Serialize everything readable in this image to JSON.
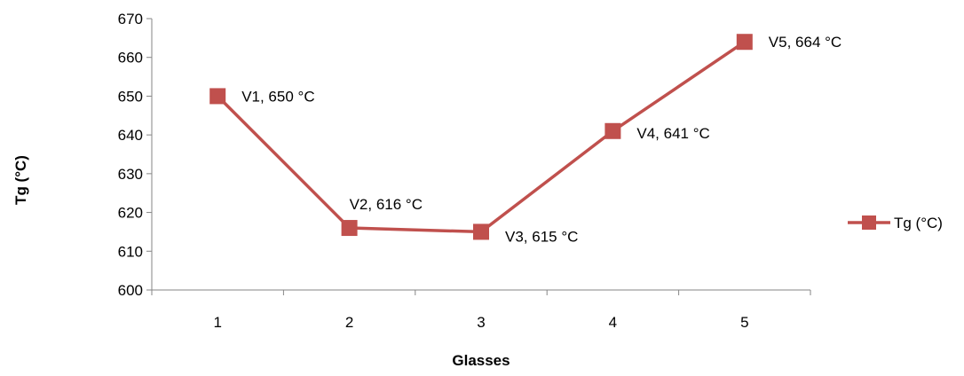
{
  "chart_data": {
    "type": "line",
    "title": "",
    "xlabel": "Glasses",
    "ylabel": "Tg (°C)",
    "categories": [
      "1",
      "2",
      "3",
      "4",
      "5"
    ],
    "ylim": [
      600,
      670
    ],
    "y_ticks": [
      600,
      610,
      620,
      630,
      640,
      650,
      660,
      670
    ],
    "y_tick_labels": [
      "600",
      "610",
      "620",
      "630",
      "640",
      "650",
      "660",
      "670"
    ],
    "grid": false,
    "legend_position": "right",
    "series": [
      {
        "name": "Tg (°C)",
        "color": "#c0504d",
        "marker": "square",
        "values": [
          650,
          616,
          615,
          641,
          664
        ],
        "data_labels": [
          "V1, 650 °C",
          "V2, 616 °C",
          "V3, 615 °C",
          "V4, 641 °C",
          "V5, 664 °C"
        ]
      }
    ]
  }
}
